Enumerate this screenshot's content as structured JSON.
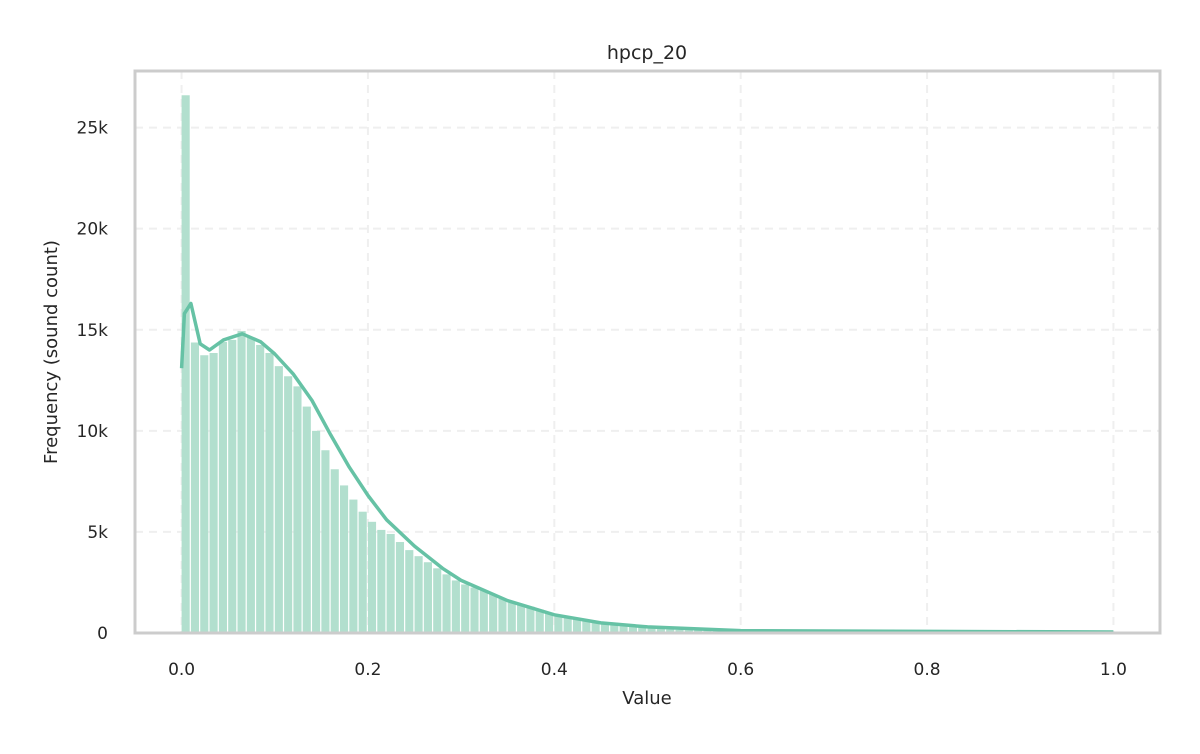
{
  "chart_data": {
    "type": "bar",
    "title": "hpcp_20",
    "xlabel": "Value",
    "ylabel": "Frequency (sound count)",
    "xlim": [
      -0.05,
      1.05
    ],
    "ylim": [
      0,
      27800
    ],
    "x_ticks": [
      0.0,
      0.2,
      0.4,
      0.6,
      0.8,
      1.0
    ],
    "x_tick_labels": [
      "0.0",
      "0.2",
      "0.4",
      "0.6",
      "0.8",
      "1.0"
    ],
    "y_ticks": [
      0,
      5000,
      10000,
      15000,
      20000,
      25000
    ],
    "y_tick_labels": [
      "0",
      "5k",
      "10k",
      "15k",
      "20k",
      "25k"
    ],
    "grid": true,
    "bin_width": 0.01,
    "bin_start": 0.0,
    "values": [
      26600,
      14370,
      13740,
      13850,
      14400,
      14500,
      14940,
      14600,
      14250,
      13850,
      13200,
      12700,
      12200,
      11200,
      10000,
      9040,
      8100,
      7300,
      6600,
      6000,
      5500,
      5100,
      4900,
      4500,
      4100,
      3800,
      3500,
      3200,
      2900,
      2600,
      2400,
      2250,
      2100,
      1900,
      1700,
      1500,
      1400,
      1300,
      1150,
      1000,
      900,
      800,
      700,
      600,
      520,
      450,
      400,
      350,
      300,
      260,
      230,
      200,
      180,
      160,
      140,
      130,
      120,
      110,
      100,
      95,
      90,
      85,
      80,
      78,
      75,
      72,
      70,
      68,
      66,
      64,
      62,
      60,
      58,
      56,
      55,
      54,
      53,
      52,
      51,
      50,
      50,
      49,
      48,
      47,
      46,
      45,
      45,
      44,
      43,
      42,
      42,
      41,
      40,
      40,
      39,
      38,
      38,
      37,
      37,
      110
    ],
    "kde": {
      "x": [
        0,
        0.003,
        0.01,
        0.02,
        0.03,
        0.045,
        0.065,
        0.085,
        0.1,
        0.12,
        0.14,
        0.16,
        0.18,
        0.2,
        0.22,
        0.25,
        0.28,
        0.3,
        0.35,
        0.4,
        0.45,
        0.5,
        0.6,
        0.8,
        1.0
      ],
      "y": [
        13100,
        15800,
        16300,
        14300,
        14000,
        14500,
        14800,
        14400,
        13800,
        12800,
        11500,
        9800,
        8200,
        6800,
        5600,
        4300,
        3200,
        2600,
        1600,
        900,
        500,
        300,
        120,
        80,
        50
      ]
    },
    "colors": {
      "bar": "#b2dfce",
      "line": "#66c2a5",
      "frame": "#cccccc",
      "grid": "#efefef"
    }
  }
}
